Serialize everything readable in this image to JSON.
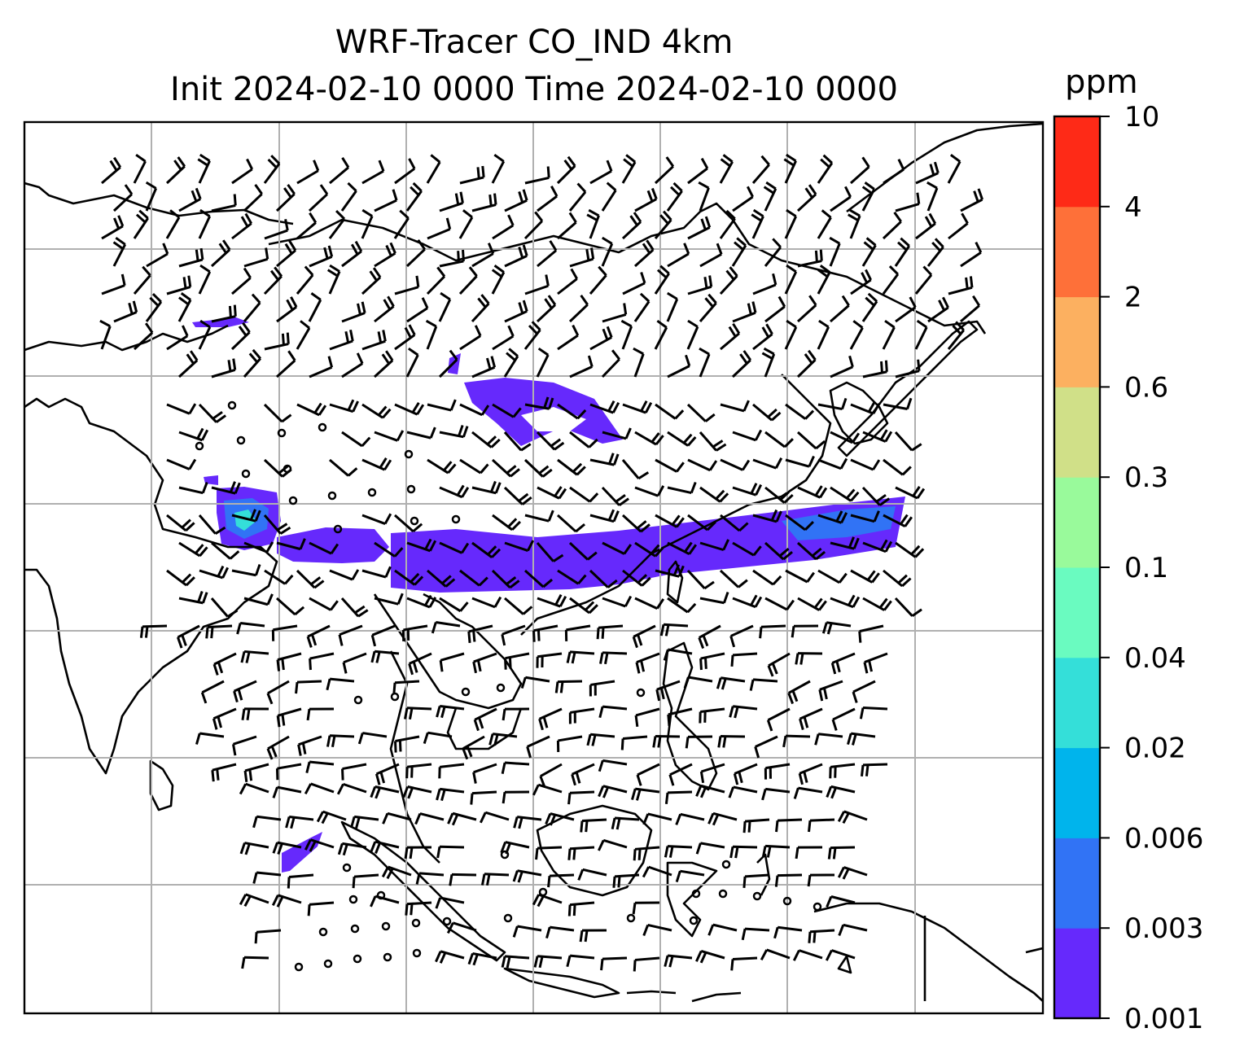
{
  "title": {
    "line1": "WRF-Tracer CO_IND 4km",
    "line2": "Init 2024-02-10 0000 Time 2024-02-10 0000"
  },
  "map": {
    "gridlines": true,
    "gridline_color": "#b0b0b0",
    "coastline_color": "#000000",
    "overlay": "wind barbs",
    "calm_marker": "open circle"
  },
  "colorbar": {
    "unit": "ppm",
    "levels": [
      "0.001",
      "0.003",
      "0.006",
      "0.02",
      "0.04",
      "0.1",
      "0.3",
      "0.6",
      "2",
      "4",
      "10"
    ],
    "colors": [
      "#6629fc",
      "#3173f5",
      "#00b4ec",
      "#34dfd9",
      "#6afbc0",
      "#99fa9b",
      "#d0e088",
      "#fcb060",
      "#fe7039",
      "#fe2a17"
    ]
  },
  "tracer_fill_colors": {
    "main": "#6629fc",
    "secondary": "#3173f5",
    "high": "#34dfd9"
  }
}
